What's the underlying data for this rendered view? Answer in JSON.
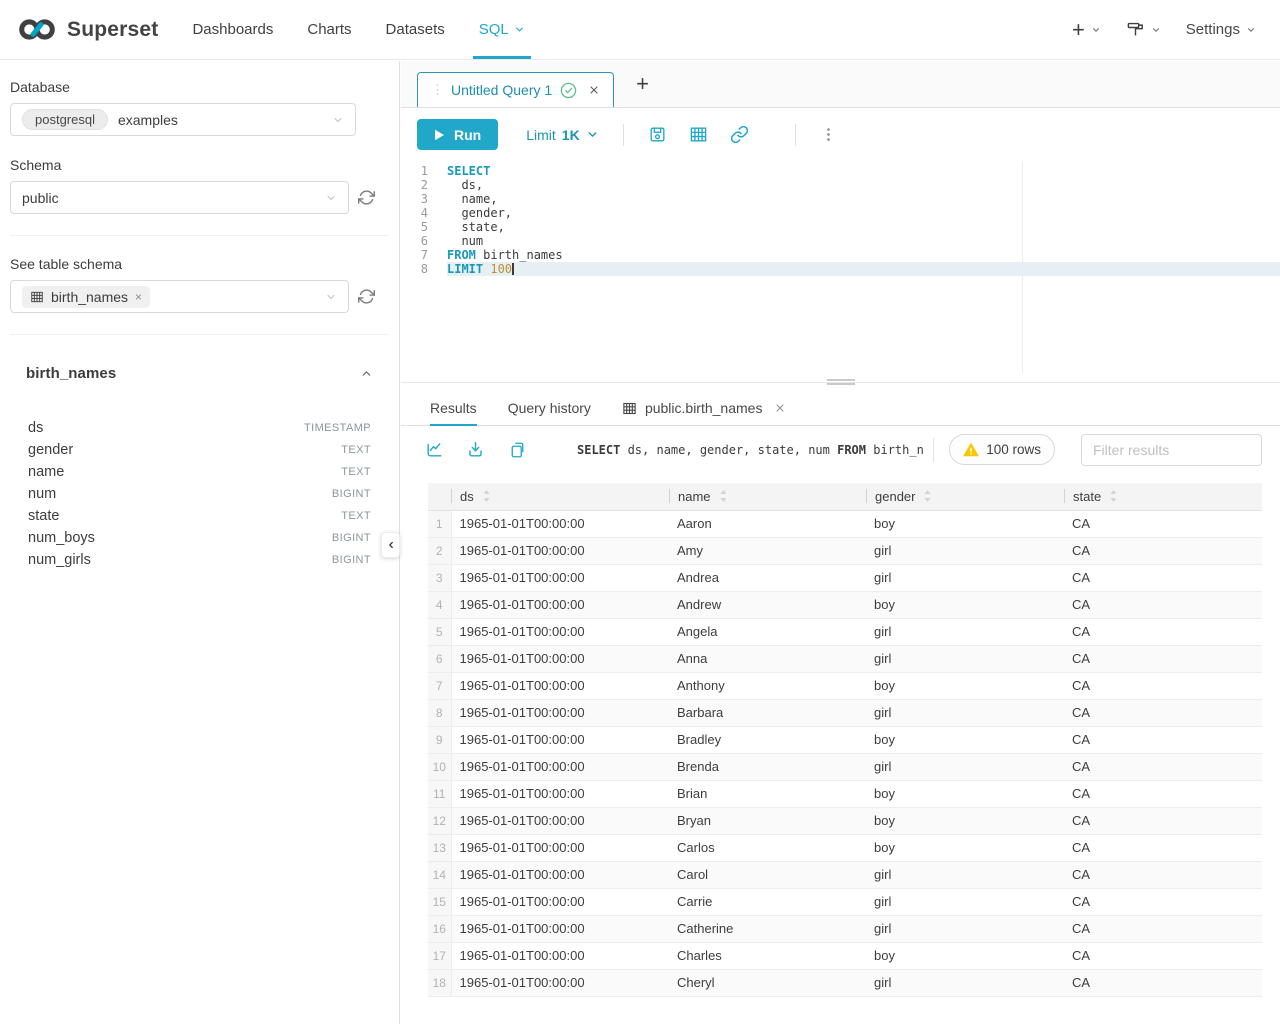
{
  "colors": {
    "accent": "#20a7c9",
    "success_green": "#5ac189",
    "warning_yellow": "#fcc700",
    "sql_keyword": "#1899b8",
    "sql_number": "#bf9030",
    "active_line_bg": "#e5eff4"
  },
  "icons": {
    "plus": "+",
    "drag_handle": "⋮",
    "pill_close": "×"
  },
  "navbar": {
    "brand": "Superset",
    "items": [
      {
        "label": "Dashboards",
        "active": false
      },
      {
        "label": "Charts",
        "active": false
      },
      {
        "label": "Datasets",
        "active": false
      },
      {
        "label": "SQL",
        "active": true
      }
    ],
    "right": {
      "settings_label": "Settings"
    }
  },
  "sidebar": {
    "database_label": "Database",
    "database_engine": "postgresql",
    "database_value": "examples",
    "schema_label": "Schema",
    "schema_value": "public",
    "table_label": "See table schema",
    "table_value": "birth_names",
    "table_panel": {
      "title": "birth_names",
      "columns": [
        {
          "name": "ds",
          "type": "TIMESTAMP"
        },
        {
          "name": "gender",
          "type": "TEXT"
        },
        {
          "name": "name",
          "type": "TEXT"
        },
        {
          "name": "num",
          "type": "BIGINT"
        },
        {
          "name": "state",
          "type": "TEXT"
        },
        {
          "name": "num_boys",
          "type": "BIGINT"
        },
        {
          "name": "num_girls",
          "type": "BIGINT"
        }
      ]
    }
  },
  "editor": {
    "tab_title": "Untitled Query 1",
    "run_label": "Run",
    "limit_label": "Limit",
    "limit_value": "1K",
    "lines": [
      {
        "num": "1",
        "segments": [
          {
            "t": "SELECT",
            "c": "kw"
          }
        ]
      },
      {
        "num": "2",
        "segments": [
          {
            "t": "  ds,"
          }
        ]
      },
      {
        "num": "3",
        "segments": [
          {
            "t": "  name,"
          }
        ]
      },
      {
        "num": "4",
        "segments": [
          {
            "t": "  gender,"
          }
        ]
      },
      {
        "num": "5",
        "segments": [
          {
            "t": "  state,"
          }
        ]
      },
      {
        "num": "6",
        "segments": [
          {
            "t": "  num"
          }
        ]
      },
      {
        "num": "7",
        "segments": [
          {
            "t": "FROM",
            "c": "kw"
          },
          {
            "t": " birth_names"
          }
        ]
      },
      {
        "num": "8",
        "active": true,
        "cursor": true,
        "segments": [
          {
            "t": "LIMIT",
            "c": "kw"
          },
          {
            "t": " "
          },
          {
            "t": "100",
            "c": "num"
          }
        ]
      }
    ]
  },
  "results": {
    "tabs": [
      {
        "label": "Results",
        "active": true
      },
      {
        "label": "Query history",
        "active": false
      },
      {
        "label": "public.birth_names",
        "active": false
      }
    ],
    "toolbar": {
      "query_preview": [
        {
          "t": "SELECT",
          "b": true
        },
        {
          "t": " ds, name, gender, state, num "
        },
        {
          "t": "FROM",
          "b": true
        },
        {
          "t": " birth_nam…"
        }
      ],
      "rows_badge": "100 rows",
      "filter_placeholder": "Filter results"
    },
    "table": {
      "columns": [
        "ds",
        "name",
        "gender",
        "state"
      ],
      "rows": [
        [
          "1",
          "1965-01-01T00:00:00",
          "Aaron",
          "boy",
          "CA"
        ],
        [
          "2",
          "1965-01-01T00:00:00",
          "Amy",
          "girl",
          "CA"
        ],
        [
          "3",
          "1965-01-01T00:00:00",
          "Andrea",
          "girl",
          "CA"
        ],
        [
          "4",
          "1965-01-01T00:00:00",
          "Andrew",
          "boy",
          "CA"
        ],
        [
          "5",
          "1965-01-01T00:00:00",
          "Angela",
          "girl",
          "CA"
        ],
        [
          "6",
          "1965-01-01T00:00:00",
          "Anna",
          "girl",
          "CA"
        ],
        [
          "7",
          "1965-01-01T00:00:00",
          "Anthony",
          "boy",
          "CA"
        ],
        [
          "8",
          "1965-01-01T00:00:00",
          "Barbara",
          "girl",
          "CA"
        ],
        [
          "9",
          "1965-01-01T00:00:00",
          "Bradley",
          "boy",
          "CA"
        ],
        [
          "10",
          "1965-01-01T00:00:00",
          "Brenda",
          "girl",
          "CA"
        ],
        [
          "11",
          "1965-01-01T00:00:00",
          "Brian",
          "boy",
          "CA"
        ],
        [
          "12",
          "1965-01-01T00:00:00",
          "Bryan",
          "boy",
          "CA"
        ],
        [
          "13",
          "1965-01-01T00:00:00",
          "Carlos",
          "boy",
          "CA"
        ],
        [
          "14",
          "1965-01-01T00:00:00",
          "Carol",
          "girl",
          "CA"
        ],
        [
          "15",
          "1965-01-01T00:00:00",
          "Carrie",
          "girl",
          "CA"
        ],
        [
          "16",
          "1965-01-01T00:00:00",
          "Catherine",
          "girl",
          "CA"
        ],
        [
          "17",
          "1965-01-01T00:00:00",
          "Charles",
          "boy",
          "CA"
        ],
        [
          "18",
          "1965-01-01T00:00:00",
          "Cheryl",
          "girl",
          "CA"
        ]
      ]
    }
  }
}
